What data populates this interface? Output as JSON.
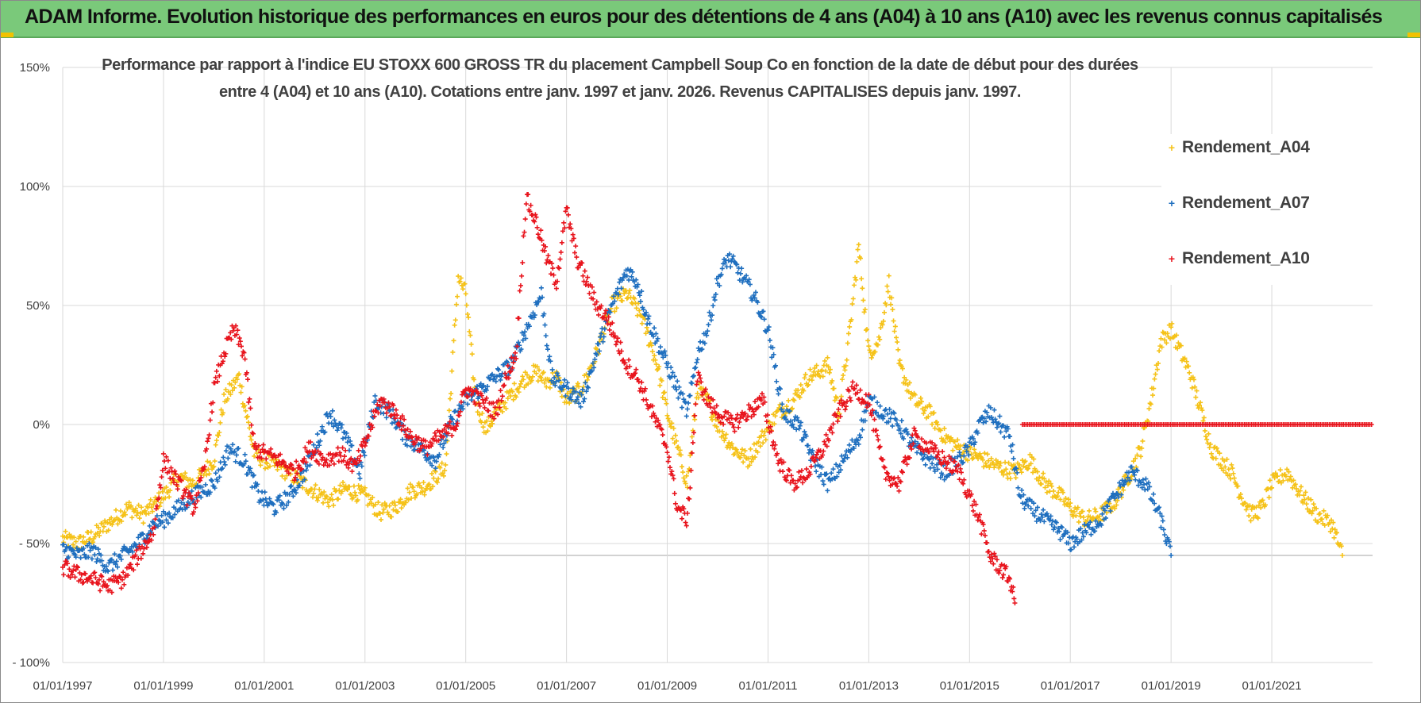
{
  "banner": {
    "title": "ADAM Informe. Evolution historique des performances en euros pour des détentions de 4 ans (A04) à 10 ans (A10) avec les revenus connus capitalisés"
  },
  "chart_data": {
    "type": "scatter",
    "title_line1": "Performance par rapport à l'indice EU STOXX 600 GROSS TR  du placement Campbell Soup Co en fonction de la date de début pour des durées",
    "title_line2": "entre 4 (A04) et 10 ans (A10).  Cotations entre janv. 1997 et janv. 2026. Revenus CAPITALISES  depuis janv. 1997.",
    "xlabel": "",
    "ylabel": "",
    "xlim": [
      1997.0,
      2023.0
    ],
    "ylim": [
      -100,
      150
    ],
    "x_ticks": [
      1997,
      1999,
      2001,
      2003,
      2005,
      2007,
      2009,
      2011,
      2013,
      2015,
      2017,
      2019,
      2021
    ],
    "x_tick_labels": [
      "01/01/1997",
      "01/01/1999",
      "01/01/2001",
      "01/01/2003",
      "01/01/2005",
      "01/01/2007",
      "01/01/2009",
      "01/01/2011",
      "01/01/2013",
      "01/01/2015",
      "01/01/2017",
      "01/01/2019",
      "01/01/2021"
    ],
    "y_ticks": [
      150,
      100,
      50,
      0,
      -50,
      -100
    ],
    "y_tick_labels": [
      "150%",
      "100%",
      "50%",
      "0%",
      "- 50%",
      "- 100%"
    ],
    "grid": true,
    "legend_position": "top-right",
    "series": [
      {
        "name": "Rendement_A04",
        "color": "#f5c218",
        "x": [
          1997.0,
          1997.3,
          1997.6,
          1998.0,
          1998.3,
          1998.6,
          1999.0,
          1999.3,
          1999.6,
          2000.0,
          2000.2,
          2000.5,
          2000.8,
          2001.0,
          2001.3,
          2001.6,
          2002.0,
          2002.3,
          2002.6,
          2003.0,
          2003.3,
          2003.6,
          2003.9,
          2004.2,
          2004.6,
          2004.85,
          2005.0,
          2005.2,
          2005.4,
          2005.6,
          2005.8,
          2006.0,
          2006.2,
          2006.4,
          2006.6,
          2006.8,
          2007.0,
          2007.3,
          2007.6,
          2007.9,
          2008.2,
          2008.5,
          2008.8,
          2009.0,
          2009.2,
          2009.4,
          2009.6,
          2009.8,
          2010.0,
          2010.3,
          2010.6,
          2010.9,
          2011.2,
          2011.5,
          2011.8,
          2012.0,
          2012.2,
          2012.4,
          2012.6,
          2012.8,
          2013.0,
          2013.2,
          2013.4,
          2013.6,
          2013.9,
          2014.2,
          2014.5,
          2014.8,
          2015.0,
          2015.3,
          2015.6,
          2015.9,
          2016.2,
          2016.5,
          2016.8,
          2017.0,
          2017.3,
          2017.6,
          2017.9,
          2018.0,
          2018.2,
          2018.4,
          2018.6,
          2018.8,
          2019.0,
          2019.2,
          2019.4,
          2019.6,
          2019.8,
          2020.0,
          2020.2,
          2020.4,
          2020.6,
          2020.8,
          2021.0,
          2021.3,
          2021.6,
          2021.9,
          2022.2,
          2022.4
        ],
        "y": [
          -48,
          -50,
          -47,
          -40,
          -35,
          -38,
          -30,
          -22,
          -25,
          -15,
          10,
          20,
          -12,
          -15,
          -18,
          -22,
          -28,
          -32,
          -27,
          -30,
          -37,
          -35,
          -28,
          -26,
          -18,
          62,
          55,
          10,
          -2,
          5,
          10,
          15,
          20,
          22,
          18,
          20,
          10,
          15,
          30,
          50,
          55,
          45,
          25,
          5,
          -10,
          -25,
          15,
          10,
          0,
          -10,
          -15,
          -5,
          5,
          10,
          20,
          22,
          25,
          5,
          35,
          75,
          30,
          35,
          60,
          25,
          10,
          5,
          -5,
          -10,
          -12,
          -15,
          -18,
          -20,
          -15,
          -25,
          -30,
          -35,
          -40,
          -38,
          -32,
          -28,
          -20,
          -10,
          10,
          35,
          40,
          30,
          20,
          5,
          -10,
          -15,
          -20,
          -30,
          -38,
          -35,
          -25,
          -20,
          -30,
          -38,
          -42,
          -55
        ]
      },
      {
        "name": "Rendement_A07",
        "color": "#1f6fbf",
        "x": [
          1997.0,
          1997.3,
          1997.6,
          1997.9,
          1998.2,
          1998.5,
          1998.8,
          1999.0,
          1999.3,
          1999.6,
          2000.0,
          2000.3,
          2000.6,
          2000.9,
          2001.2,
          2001.5,
          2001.8,
          2002.0,
          2002.3,
          2002.6,
          2002.9,
          2003.2,
          2003.5,
          2003.8,
          2004.1,
          2004.4,
          2004.7,
          2005.0,
          2005.3,
          2005.6,
          2005.9,
          2006.1,
          2006.3,
          2006.5,
          2006.7,
          2007.0,
          2007.3,
          2007.6,
          2007.9,
          2008.2,
          2008.4,
          2008.6,
          2008.9,
          2009.0,
          2009.2,
          2009.4,
          2009.6,
          2009.8,
          2010.0,
          2010.2,
          2010.4,
          2010.7,
          2011.0,
          2011.3,
          2011.6,
          2011.9,
          2012.2,
          2012.5,
          2012.8,
          2013.0,
          2013.3,
          2013.6,
          2013.9,
          2014.2,
          2014.5,
          2014.8,
          2015.0,
          2015.2,
          2015.4,
          2015.6,
          2015.8,
          2016.0,
          2016.2,
          2016.5,
          2016.8,
          2017.0,
          2017.3,
          2017.6,
          2017.9,
          2018.2,
          2018.5,
          2018.8,
          2019.0
        ],
        "y": [
          -52,
          -55,
          -53,
          -60,
          -55,
          -50,
          -42,
          -40,
          -35,
          -30,
          -25,
          -10,
          -15,
          -30,
          -35,
          -30,
          -20,
          -10,
          5,
          -5,
          -20,
          10,
          5,
          -5,
          -10,
          -15,
          0,
          10,
          15,
          20,
          25,
          35,
          45,
          55,
          20,
          15,
          10,
          30,
          50,
          65,
          60,
          45,
          30,
          25,
          15,
          5,
          30,
          40,
          60,
          70,
          65,
          55,
          40,
          5,
          0,
          -15,
          -25,
          -15,
          -5,
          10,
          5,
          0,
          -10,
          -15,
          -20,
          -15,
          -10,
          0,
          5,
          0,
          -5,
          -30,
          -35,
          -40,
          -45,
          -50,
          -45,
          -40,
          -30,
          -20,
          -25,
          -40,
          -55
        ]
      },
      {
        "name": "Rendement_A10",
        "color": "#e8141d",
        "x": [
          1997.0,
          1997.3,
          1997.6,
          1997.9,
          1998.2,
          1998.5,
          1998.8,
          1999.0,
          1999.3,
          1999.6,
          1999.8,
          2000.0,
          2000.2,
          2000.4,
          2000.6,
          2000.8,
          2001.0,
          2001.3,
          2001.6,
          2001.9,
          2002.2,
          2002.5,
          2002.8,
          2003.0,
          2003.3,
          2003.6,
          2003.9,
          2004.2,
          2004.5,
          2004.8,
          2005.0,
          2005.3,
          2005.6,
          2005.8,
          2006.0,
          2006.2,
          2006.4,
          2006.6,
          2006.8,
          2007.0,
          2007.2,
          2007.4,
          2007.6,
          2007.8,
          2008.0,
          2008.2,
          2008.4,
          2008.6,
          2008.8,
          2009.0,
          2009.2,
          2009.4,
          2009.6,
          2009.8,
          2010.0,
          2010.3,
          2010.6,
          2010.9,
          2011.2,
          2011.5,
          2011.8,
          2012.1,
          2012.4,
          2012.7,
          2013.0,
          2013.3,
          2013.6,
          2013.9,
          2014.2,
          2014.5,
          2014.8,
          2015.0,
          2015.2,
          2015.4,
          2015.6,
          2015.8,
          2015.9
        ],
        "y": [
          -60,
          -63,
          -65,
          -68,
          -65,
          -55,
          -45,
          -15,
          -25,
          -35,
          -20,
          15,
          30,
          40,
          30,
          -10,
          -12,
          -15,
          -20,
          -10,
          -15,
          -12,
          -18,
          -8,
          10,
          5,
          -5,
          -10,
          -5,
          0,
          15,
          10,
          5,
          20,
          30,
          95,
          85,
          70,
          60,
          90,
          70,
          60,
          50,
          45,
          35,
          25,
          20,
          10,
          0,
          -10,
          -35,
          -40,
          20,
          10,
          5,
          0,
          5,
          10,
          -15,
          -25,
          -20,
          -10,
          5,
          15,
          10,
          -20,
          -25,
          -5,
          -10,
          -15,
          -20,
          -30,
          -40,
          -55,
          -60,
          -65,
          -75
        ]
      },
      {
        "name": "Rendement_A10_flat",
        "legend": false,
        "color": "#e8141d",
        "x_range": [
          2016.05,
          2023.0
        ],
        "y_value": 0
      }
    ],
    "legend": [
      "Rendement_A04",
      "Rendement_A07",
      "Rendement_A10"
    ]
  }
}
